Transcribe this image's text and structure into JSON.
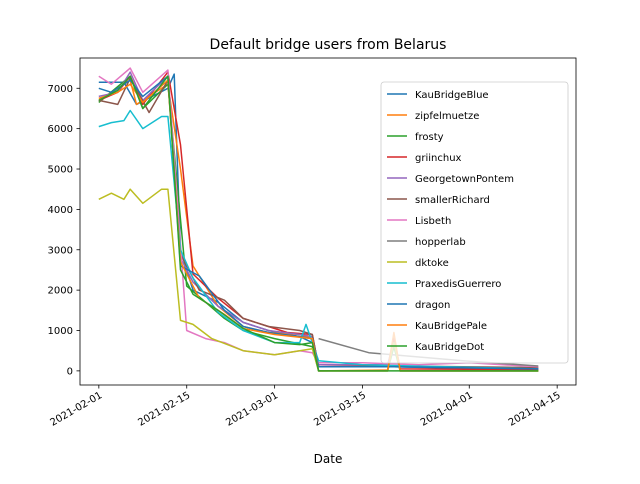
{
  "chart_data": {
    "type": "line",
    "title": "Default bridge users from Belarus",
    "xlabel": "Date",
    "ylabel": "",
    "xlim": [
      "2021-01-29",
      "2021-04-18"
    ],
    "ylim": [
      -350,
      7750
    ],
    "grid": false,
    "legend_position": "right",
    "x_ticks": [
      "2021-02-01",
      "2021-02-15",
      "2021-03-01",
      "2021-03-15",
      "2021-04-01",
      "2021-04-15"
    ],
    "y_ticks": [
      0,
      1000,
      2000,
      3000,
      4000,
      5000,
      6000,
      7000
    ],
    "series": [
      {
        "name": "KauBridgeBlue",
        "color": "#1f77b4",
        "points": [
          [
            "2021-02-01",
            7150
          ],
          [
            "2021-02-05",
            7150
          ],
          [
            "2021-02-07",
            6600
          ],
          [
            "2021-02-12",
            7000
          ],
          [
            "2021-02-13",
            7350
          ],
          [
            "2021-02-14",
            3000
          ],
          [
            "2021-02-16",
            2000
          ],
          [
            "2021-02-20",
            1700
          ],
          [
            "2021-02-24",
            1200
          ],
          [
            "2021-02-28",
            1000
          ],
          [
            "2021-03-05",
            850
          ],
          [
            "2021-03-07",
            700
          ],
          [
            "2021-03-08",
            100
          ],
          [
            "2021-03-20",
            100
          ],
          [
            "2021-03-31",
            60
          ],
          [
            "2021-04-12",
            40
          ]
        ]
      },
      {
        "name": "zipfelmuetze",
        "color": "#ff7f0e",
        "points": [
          [
            "2021-02-01",
            6700
          ],
          [
            "2021-02-06",
            7200
          ],
          [
            "2021-02-07",
            6600
          ],
          [
            "2021-02-12",
            7100
          ],
          [
            "2021-02-14",
            5000
          ],
          [
            "2021-02-16",
            2600
          ],
          [
            "2021-02-20",
            1600
          ],
          [
            "2021-02-24",
            1100
          ],
          [
            "2021-02-28",
            950
          ],
          [
            "2021-03-05",
            900
          ],
          [
            "2021-03-07",
            800
          ],
          [
            "2021-03-08",
            0
          ],
          [
            "2021-03-19",
            20
          ],
          [
            "2021-03-20",
            900
          ],
          [
            "2021-03-21",
            0
          ],
          [
            "2021-04-12",
            0
          ]
        ]
      },
      {
        "name": "frosty",
        "color": "#2ca02c",
        "points": [
          [
            "2021-02-01",
            6650
          ],
          [
            "2021-02-06",
            7300
          ],
          [
            "2021-02-08",
            6500
          ],
          [
            "2021-02-12",
            7100
          ],
          [
            "2021-02-15",
            2100
          ],
          [
            "2021-02-18",
            1700
          ],
          [
            "2021-02-21",
            1300
          ],
          [
            "2021-02-24",
            1000
          ],
          [
            "2021-03-01",
            800
          ],
          [
            "2021-03-07",
            600
          ],
          [
            "2021-03-08",
            0
          ],
          [
            "2021-03-19",
            0
          ],
          [
            "2021-03-20",
            600
          ],
          [
            "2021-03-21",
            0
          ],
          [
            "2021-04-12",
            0
          ]
        ]
      },
      {
        "name": "griinchux",
        "color": "#d62728",
        "points": [
          [
            "2021-02-01",
            6700
          ],
          [
            "2021-02-04",
            6900
          ],
          [
            "2021-02-06",
            7300
          ],
          [
            "2021-02-08",
            6600
          ],
          [
            "2021-02-12",
            7400
          ],
          [
            "2021-02-14",
            5600
          ],
          [
            "2021-02-16",
            2400
          ],
          [
            "2021-02-20",
            1800
          ],
          [
            "2021-02-24",
            1300
          ],
          [
            "2021-02-28",
            1100
          ],
          [
            "2021-03-03",
            950
          ],
          [
            "2021-03-07",
            900
          ],
          [
            "2021-03-08",
            100
          ],
          [
            "2021-03-19",
            120
          ],
          [
            "2021-03-20",
            800
          ],
          [
            "2021-03-21",
            50
          ],
          [
            "2021-04-12",
            30
          ]
        ]
      },
      {
        "name": "GeorgetownPontem",
        "color": "#9467bd",
        "points": [
          [
            "2021-02-01",
            6800
          ],
          [
            "2021-02-04",
            6900
          ],
          [
            "2021-02-06",
            7400
          ],
          [
            "2021-02-08",
            6700
          ],
          [
            "2021-02-12",
            7300
          ],
          [
            "2021-02-14",
            2800
          ],
          [
            "2021-02-16",
            2200
          ],
          [
            "2021-02-20",
            1600
          ],
          [
            "2021-02-24",
            1200
          ],
          [
            "2021-02-28",
            1000
          ],
          [
            "2021-03-05",
            900
          ],
          [
            "2021-03-07",
            850
          ],
          [
            "2021-03-08",
            150
          ],
          [
            "2021-03-19",
            150
          ],
          [
            "2021-03-20",
            700
          ],
          [
            "2021-03-21",
            100
          ],
          [
            "2021-04-12",
            60
          ]
        ]
      },
      {
        "name": "smallerRichard",
        "color": "#8c564b",
        "points": [
          [
            "2021-02-01",
            6700
          ],
          [
            "2021-02-04",
            6600
          ],
          [
            "2021-02-06",
            7250
          ],
          [
            "2021-02-09",
            6400
          ],
          [
            "2021-02-12",
            7200
          ],
          [
            "2021-02-14",
            2900
          ],
          [
            "2021-02-17",
            2000
          ],
          [
            "2021-02-21",
            1750
          ],
          [
            "2021-02-24",
            1300
          ],
          [
            "2021-02-28",
            1100
          ],
          [
            "2021-03-05",
            1000
          ],
          [
            "2021-03-07",
            900
          ],
          [
            "2021-03-08",
            100
          ],
          [
            "2021-03-20",
            120
          ],
          [
            "2021-04-12",
            80
          ]
        ]
      },
      {
        "name": "Lisbeth",
        "color": "#e377c2",
        "points": [
          [
            "2021-02-01",
            7300
          ],
          [
            "2021-02-03",
            7100
          ],
          [
            "2021-02-06",
            7500
          ],
          [
            "2021-02-08",
            6900
          ],
          [
            "2021-02-12",
            7450
          ],
          [
            "2021-02-15",
            1000
          ],
          [
            "2021-02-18",
            800
          ],
          [
            "2021-02-21",
            700
          ],
          [
            "2021-02-24",
            500
          ],
          [
            "2021-03-01",
            400
          ],
          [
            "2021-03-05",
            500
          ],
          [
            "2021-03-07",
            450
          ],
          [
            "2021-03-08",
            200
          ],
          [
            "2021-03-15",
            200
          ],
          [
            "2021-03-24",
            150
          ],
          [
            "2021-04-01",
            200
          ],
          [
            "2021-04-12",
            100
          ]
        ]
      },
      {
        "name": "hopperlab",
        "color": "#7f7f7f",
        "points": [
          [
            "2021-03-08",
            800
          ],
          [
            "2021-03-16",
            450
          ],
          [
            "2021-03-31",
            250
          ],
          [
            "2021-04-12",
            120
          ]
        ]
      },
      {
        "name": "dktoke",
        "color": "#bcbd22",
        "points": [
          [
            "2021-02-01",
            4250
          ],
          [
            "2021-02-03",
            4400
          ],
          [
            "2021-02-05",
            4250
          ],
          [
            "2021-02-06",
            4500
          ],
          [
            "2021-02-08",
            4150
          ],
          [
            "2021-02-11",
            4500
          ],
          [
            "2021-02-12",
            4500
          ],
          [
            "2021-02-14",
            1250
          ],
          [
            "2021-02-16",
            1150
          ],
          [
            "2021-02-19",
            800
          ],
          [
            "2021-02-24",
            500
          ],
          [
            "2021-03-01",
            400
          ],
          [
            "2021-03-07",
            550
          ],
          [
            "2021-03-08",
            0
          ],
          [
            "2021-03-19",
            0
          ],
          [
            "2021-03-20",
            700
          ],
          [
            "2021-03-21",
            0
          ],
          [
            "2021-04-12",
            0
          ]
        ]
      },
      {
        "name": "PraxedisGuerrero",
        "color": "#17becf",
        "points": [
          [
            "2021-02-01",
            6050
          ],
          [
            "2021-02-03",
            6150
          ],
          [
            "2021-02-05",
            6200
          ],
          [
            "2021-02-06",
            6450
          ],
          [
            "2021-02-08",
            6000
          ],
          [
            "2021-02-11",
            6300
          ],
          [
            "2021-02-12",
            6300
          ],
          [
            "2021-02-14",
            3000
          ],
          [
            "2021-02-16",
            2300
          ],
          [
            "2021-02-20",
            1450
          ],
          [
            "2021-02-24",
            1000
          ],
          [
            "2021-03-01",
            700
          ],
          [
            "2021-03-05",
            700
          ],
          [
            "2021-03-06",
            1150
          ],
          [
            "2021-03-08",
            250
          ],
          [
            "2021-03-15",
            150
          ],
          [
            "2021-04-12",
            50
          ]
        ]
      },
      {
        "name": "dragon",
        "color": "#1f77b4",
        "points": [
          [
            "2021-02-01",
            7000
          ],
          [
            "2021-02-03",
            6900
          ],
          [
            "2021-02-06",
            7200
          ],
          [
            "2021-02-08",
            6800
          ],
          [
            "2021-02-12",
            7300
          ],
          [
            "2021-02-14",
            2600
          ],
          [
            "2021-02-17",
            2350
          ],
          [
            "2021-02-21",
            1500
          ],
          [
            "2021-02-24",
            1100
          ],
          [
            "2021-02-28",
            950
          ],
          [
            "2021-03-05",
            850
          ],
          [
            "2021-03-07",
            800
          ],
          [
            "2021-03-08",
            100
          ],
          [
            "2021-03-20",
            100
          ],
          [
            "2021-04-12",
            50
          ]
        ]
      },
      {
        "name": "KauBridgePale",
        "color": "#ff7f0e",
        "points": [
          [
            "2021-02-01",
            6750
          ],
          [
            "2021-02-04",
            6900
          ],
          [
            "2021-02-06",
            7100
          ],
          [
            "2021-02-08",
            6650
          ],
          [
            "2021-02-12",
            7200
          ],
          [
            "2021-02-14",
            2700
          ],
          [
            "2021-02-17",
            1800
          ],
          [
            "2021-02-21",
            1400
          ],
          [
            "2021-02-24",
            1050
          ],
          [
            "2021-03-01",
            900
          ],
          [
            "2021-03-07",
            800
          ],
          [
            "2021-03-08",
            0
          ],
          [
            "2021-03-19",
            0
          ],
          [
            "2021-03-20",
            950
          ],
          [
            "2021-03-21",
            0
          ],
          [
            "2021-04-12",
            0
          ]
        ]
      },
      {
        "name": "KauBridgeDot",
        "color": "#2ca02c",
        "points": [
          [
            "2021-02-01",
            6700
          ],
          [
            "2021-02-04",
            6950
          ],
          [
            "2021-02-06",
            7300
          ],
          [
            "2021-02-08",
            6500
          ],
          [
            "2021-02-12",
            7300
          ],
          [
            "2021-02-14",
            2500
          ],
          [
            "2021-02-16",
            1900
          ],
          [
            "2021-02-20",
            1500
          ],
          [
            "2021-02-24",
            1050
          ],
          [
            "2021-03-01",
            700
          ],
          [
            "2021-03-05",
            650
          ],
          [
            "2021-03-07",
            700
          ],
          [
            "2021-03-08",
            0
          ],
          [
            "2021-04-12",
            0
          ]
        ]
      }
    ]
  }
}
